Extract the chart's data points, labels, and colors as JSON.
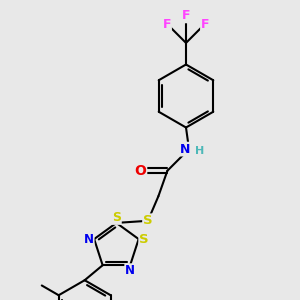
{
  "bg_color": "#e8e8e8",
  "atom_colors": {
    "C": "#000000",
    "H": "#4db8b8",
    "N": "#0000ee",
    "O": "#ee0000",
    "S": "#cccc00",
    "F": "#ff44ff"
  },
  "bond_color": "#000000",
  "bond_lw": 1.5,
  "figsize": [
    3.0,
    3.0
  ],
  "dpi": 100,
  "xlim": [
    0,
    10
  ],
  "ylim": [
    0,
    10
  ]
}
